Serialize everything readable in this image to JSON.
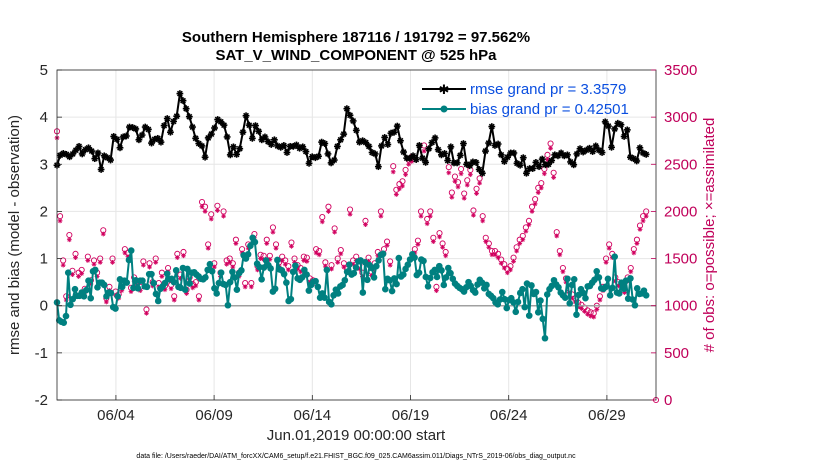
{
  "chart_data": {
    "type": "line",
    "title": "Southern Hemisphere 187116 / 191792 = 97.562%",
    "subtitle": "SAT_V_WIND_COMPONENT @ 525 hPa",
    "xlabel": "Jun.01,2019 00:00:00 start",
    "ylabel": "rmse and bias (model - observation)",
    "ylabel_right": "# of obs: o=possible; ×=assimilated",
    "footer": "data file: /Users/raeder/DAI/ATM_forcXX/CAM6_setup/f.e21.FHIST_BGC.f09_025.CAM6assim.011/Diags_NTrS_2019-06/obs_diag_output.nc",
    "xlim": [
      1,
      31.5
    ],
    "ylim": [
      -2,
      5
    ],
    "ylim_right": [
      0,
      3500
    ],
    "x_ticks": [
      {
        "x": 4,
        "label": "06/04"
      },
      {
        "x": 9,
        "label": "06/09"
      },
      {
        "x": 14,
        "label": "06/14"
      },
      {
        "x": 19,
        "label": "06/19"
      },
      {
        "x": 24,
        "label": "06/24"
      },
      {
        "x": 29,
        "label": "06/29"
      }
    ],
    "y_ticks": [
      "-2",
      "-1",
      "0",
      "1",
      "2",
      "3",
      "4",
      "5"
    ],
    "y_ticks_right": [
      "0",
      "500",
      "1000",
      "1500",
      "2000",
      "2500",
      "3000",
      "3500"
    ],
    "grid": true,
    "legend_position": "top-right",
    "colors": {
      "rmse": "#000000",
      "bias": "#008080",
      "obs": "#d1005f",
      "axis_right": "#c0005a"
    },
    "series": [
      {
        "name": "rmse grand pr = 3.3579",
        "color": "#000000",
        "marker": "star",
        "values": [
          2.98,
          3.19,
          3.23,
          3.21,
          3.16,
          3.22,
          3.3,
          3.38,
          3.22,
          3.31,
          3.35,
          3.28,
          3.12,
          3.24,
          2.89,
          3.18,
          3.14,
          3.09,
          3.59,
          3.53,
          3.35,
          3.58,
          3.6,
          3.79,
          3.78,
          3.75,
          3.52,
          3.62,
          3.79,
          3.74,
          3.45,
          3.53,
          3.55,
          3.47,
          3.82,
          3.97,
          3.68,
          3.91,
          4.02,
          4.5,
          4.35,
          4.18,
          4.01,
          3.79,
          3.55,
          3.44,
          3.39,
          3.15,
          3.56,
          3.64,
          3.77,
          3.95,
          3.9,
          3.83,
          3.58,
          3.2,
          3.37,
          3.21,
          3.33,
          3.68,
          4.03,
          3.83,
          3.55,
          3.82,
          3.7,
          3.52,
          3.58,
          3.48,
          3.42,
          3.52,
          3.39,
          3.36,
          3.4,
          3.25,
          3.38,
          3.38,
          3.41,
          3.34,
          3.37,
          3.27,
          3.02,
          3.16,
          3.14,
          3.17,
          3.47,
          3.44,
          3.22,
          3.03,
          3.09,
          3.38,
          3.52,
          3.64,
          4.18,
          4.04,
          3.92,
          3.72,
          3.47,
          3.5,
          3.46,
          3.38,
          3.25,
          3.22,
          2.95,
          3.39,
          3.57,
          3.42,
          3.66,
          3.68,
          3.81,
          3.5,
          3.26,
          3.13,
          3.13,
          3.18,
          3.1,
          3.4,
          3.13,
          3.04,
          3.33,
          3.46,
          3.56,
          3.31,
          3.2,
          3.23,
          3.08,
          3.37,
          3.03,
          3.03,
          3.19,
          3.44,
          3.0,
          2.97,
          3.05,
          3.04,
          2.89,
          2.81,
          3.28,
          3.45,
          3.8,
          3.4,
          3.43,
          3.2,
          3.06,
          3.15,
          3.24,
          3.24,
          3.02,
          2.98,
          3.14,
          2.81,
          2.91,
          2.91,
          3.04,
          2.95,
          3.11,
          2.99,
          3.0,
          3.08,
          3.2,
          3.18,
          3.24,
          3.18,
          3.2,
          3.05,
          2.99,
          3.22,
          3.33,
          3.26,
          3.3,
          3.34,
          3.27,
          3.39,
          3.3,
          3.25,
          3.9,
          3.81,
          3.36,
          3.75,
          3.87,
          3.84,
          3.59,
          3.73,
          3.15,
          3.12,
          3.07,
          3.35,
          3.24,
          3.21
        ]
      },
      {
        "name": "bias grand pr = 0.42501",
        "color": "#008080",
        "marker": "circle",
        "values": [
          0.07,
          -0.31,
          -0.34,
          -0.36,
          -0.22,
          0.7,
          0.02,
          0.14,
          0.35,
          0.21,
          0.21,
          0.28,
          0.2,
          0.33,
          0.53,
          0.16,
          0.73,
          0.76,
          0.39,
          0.49,
          0.49,
          0.44,
          0.2,
          0.28,
          0.27,
          -0.03,
          -0.06,
          0.2,
          0.56,
          0.4,
          0.53,
          0.49,
          0.97,
          1.17,
          0.38,
          0.54,
          0.37,
          0.53,
          0.53,
          0.41,
          0.4,
          0.67,
          0.67,
          0.48,
          0.25,
          0.1,
          0.36,
          0.41,
          0.48,
          0.68,
          0.56,
          0.57,
          0.5,
          0.75,
          0.4,
          0.38,
          0.8,
          0.34,
          0.78,
          0.47,
          0.7,
          0.71,
          0.66,
          0.62,
          0.57,
          0.56,
          0.6,
          0.76,
          0.88,
          0.73,
          0.37,
          0.26,
          0.48,
          0.7,
          0.46,
          0.44,
          0.01,
          0.5,
          0.72,
          0.6,
          0.34,
          0.69,
          0.75,
          1.07,
          1.0,
          1.09,
          1.27,
          1.44,
          1.35,
          0.89,
          0.82,
          0.56,
          0.81,
          0.96,
          0.86,
          0.79,
          0.3,
          0.36,
          0.97,
          0.77,
          0.75,
          0.67,
          0.49,
          0.1,
          0.14,
          0.72,
          0.85,
          0.58,
          0.55,
          0.6,
          0.76,
          0.66,
          0.32,
          0.44,
          0.51,
          0.52,
          0.4,
          0.17,
          0.26,
          0.17,
          0.76,
          0.08,
          0.03,
          0.22,
          0.34,
          0.26,
          0.41,
          0.44,
          0.54,
          0.72,
          0.87,
          0.66,
          0.69,
          0.81,
          0.94,
          0.96,
          0.28,
          0.92,
          0.55,
          0.86,
          0.8,
          0.6,
          0.84,
          0.96,
          1.08,
          1.1,
          0.35,
          0.57,
          0.54,
          0.31,
          0.58,
          0.46,
          1.01,
          0.62,
          0.66,
          0.78,
          0.87,
          0.98,
          1.09,
          1.02,
          0.65,
          0.7,
          0.98,
          0.95,
          0.61,
          0.41,
          0.59,
          0.71,
          0.76,
          0.61,
          0.84,
          0.75,
          0.44,
          0.6,
          0.8,
          0.69,
          0.57,
          0.47,
          0.42,
          0.38,
          0.35,
          0.3,
          0.39,
          0.5,
          0.42,
          0.33,
          0.28,
          0.45,
          0.55,
          0.49,
          0.37,
          0.44,
          0.25,
          0.21,
          0.16,
          0.07,
          0.03,
          0.13,
          0.29,
          0.14,
          -0.05,
          0.12,
          0.16,
          0.07,
          -0.13,
          0.08,
          0.27,
          0.35,
          -0.03,
          0.47,
          -0.21,
          0.43,
          0.25,
          0.29,
          -0.14,
          0.11,
          -0.28,
          -0.69,
          0.24,
          0.35,
          0.42,
          0.54,
          0.45,
          0.39,
          0.28,
          0.22,
          0.17,
          0.57,
          0.05,
          0.44,
          0.56,
          -0.19,
          0.23,
          0.35,
          0.27,
          0.16,
          0.41,
          0.42,
          0.49,
          0.55,
          0.73,
          0.6,
          0.37,
          0.36,
          0.4,
          0.57,
          0.22,
          0.38,
          1.04,
          0.28,
          0.26,
          0.49,
          0.36,
          0.53,
          0.15,
          0.58,
          0.13,
          0.01,
          0.37,
          0.25,
          0.26,
          0.32,
          0.22
        ]
      },
      {
        "name": "obs possible",
        "color": "#d1005f",
        "marker": "circle-open",
        "values": [
          2850,
          1950,
          1480,
          1100,
          1750,
          1370,
          1550,
          1350,
          1380,
          1180,
          1520,
          1270,
          1480,
          1350,
          1500,
          1800,
          1080,
          1200,
          1500,
          1150,
          1120,
          1200,
          1600,
          1560,
          1190,
          1300,
          1260,
          1200,
          1470,
          960,
          1450,
          1250,
          1500,
          1240,
          1350,
          1210,
          1400,
          1220,
          1100,
          1550,
          1330,
          1570,
          1170,
          1300,
          1230,
          1250,
          1100,
          2100,
          2050,
          1650,
          1970,
          1450,
          2060,
          1350,
          2000,
          1480,
          1500,
          1450,
          1700,
          1350,
          1600,
          1240,
          1650,
          1240,
          1760,
          1420,
          1540,
          1530,
          1700,
          1530,
          1830,
          1650,
          1460,
          1520,
          1480,
          1420,
          1670,
          1500,
          1430,
          1400,
          1520,
          1510,
          1290,
          1270,
          1600,
          1580,
          1940,
          1460,
          2050,
          1430,
          1820,
          1500,
          1590,
          1450,
          1390,
          2020,
          1480,
          1520,
          1430,
          1350,
          1900,
          1510,
          1360,
          1450,
          1570,
          2000,
          1600,
          1680,
          1470,
          2480,
          2230,
          2290,
          2320,
          2440,
          2550,
          2580,
          1600,
          1690,
          2000,
          2700,
          1920,
          2000,
          1720,
          1200,
          1770,
          1660,
          1570,
          2470,
          2200,
          2370,
          2310,
          2450,
          2190,
          2330,
          2440,
          2010,
          2240,
          2350,
          1950,
          1720,
          1660,
          1580,
          1580,
          1550,
          1490,
          1440,
          1390,
          1420,
          1510,
          1620,
          1700,
          1740,
          1830,
          1900,
          2050,
          2130,
          2250,
          2300,
          2450,
          2600,
          2720,
          2410,
          1780,
          1580,
          1400,
          1290,
          1180,
          1120,
          1080,
          1030,
          1010,
          980,
          950,
          930,
          920,
          1000,
          1100,
          1200,
          1500,
          1650,
          1550,
          1300,
          1250,
          1230,
          1180,
          1300,
          1400,
          1600,
          1700,
          1850,
          1950,
          2000
        ]
      },
      {
        "name": "obs assimilated",
        "color": "#d1005f",
        "marker": "cross",
        "values": [
          2780,
          1900,
          1430,
          1060,
          1700,
          1330,
          1510,
          1310,
          1340,
          1140,
          1480,
          1230,
          1440,
          1310,
          1460,
          1760,
          1040,
          1160,
          1460,
          1110,
          1080,
          1160,
          1560,
          1520,
          1150,
          1260,
          1220,
          1160,
          1430,
          920,
          1410,
          1210,
          1460,
          1200,
          1310,
          1170,
          1360,
          1180,
          1060,
          1510,
          1290,
          1530,
          1130,
          1260,
          1190,
          1210,
          1060,
          2050,
          2000,
          1610,
          1920,
          1410,
          2010,
          1310,
          1950,
          1440,
          1460,
          1410,
          1660,
          1310,
          1560,
          1200,
          1610,
          1200,
          1720,
          1380,
          1500,
          1490,
          1660,
          1490,
          1780,
          1610,
          1420,
          1480,
          1440,
          1380,
          1630,
          1460,
          1390,
          1360,
          1480,
          1470,
          1250,
          1230,
          1560,
          1540,
          1890,
          1420,
          2000,
          1390,
          1780,
          1460,
          1550,
          1410,
          1350,
          1970,
          1440,
          1480,
          1390,
          1310,
          1860,
          1470,
          1320,
          1410,
          1530,
          1950,
          1560,
          1640,
          1430,
          2420,
          2180,
          2240,
          2270,
          2390,
          2500,
          2530,
          1560,
          1650,
          1950,
          2640,
          1870,
          1950,
          1680,
          1160,
          1730,
          1620,
          1530,
          2410,
          2150,
          2320,
          2260,
          2400,
          2140,
          2280,
          2390,
          1960,
          2190,
          2300,
          1900,
          1680,
          1620,
          1540,
          1540,
          1510,
          1450,
          1400,
          1350,
          1380,
          1470,
          1580,
          1660,
          1700,
          1790,
          1860,
          2000,
          2080,
          2200,
          2250,
          2400,
          2550,
          2670,
          2360,
          1740,
          1540,
          1360,
          1250,
          1140,
          1080,
          1040,
          990,
          970,
          940,
          910,
          890,
          880,
          960,
          1060,
          1160,
          1460,
          1610,
          1510,
          1260,
          1210,
          1190,
          1140,
          1260,
          1360,
          1560,
          1660,
          1810,
          1900,
          1950
        ]
      }
    ]
  }
}
